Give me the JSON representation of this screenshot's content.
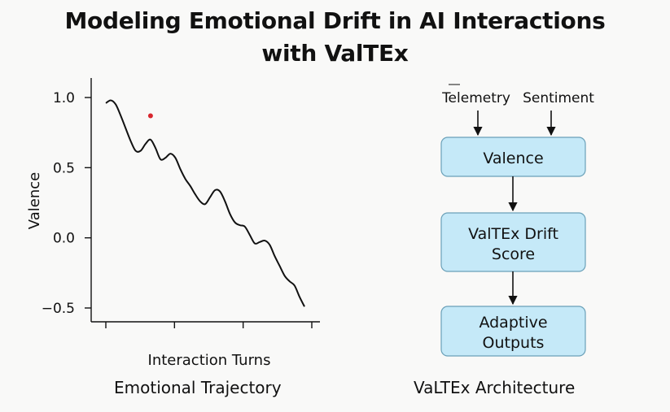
{
  "title": {
    "line1": "Modeling Emotional Drift in AI Interactions",
    "line2": "with ValTEx"
  },
  "left_panel": {
    "caption": "Emotional Trajectory"
  },
  "right_panel": {
    "caption": "VaLTEx Architecture"
  },
  "chart_data": {
    "type": "line",
    "title": "",
    "xlabel": "Interaction Turns",
    "ylabel": "Valence",
    "ylim": [
      -0.5,
      1.0
    ],
    "yticks": [
      "1.0",
      "0.5",
      "0.0",
      "−0.5"
    ],
    "ytick_values": [
      1.0,
      0.5,
      0.0,
      -0.5
    ],
    "xticks_count": 4,
    "series": [
      {
        "line_color": "#111111",
        "x": [
          0,
          0.5,
          1,
          1.5,
          2,
          2.5,
          3,
          3.5,
          4,
          4.5,
          5,
          5.5,
          6,
          6.5,
          7,
          7.5,
          8,
          8.5,
          9,
          9.5,
          10,
          10.5,
          11,
          11.5,
          12,
          12.5,
          13,
          13.5,
          14,
          14.5,
          15,
          15.5,
          16,
          16.5,
          17,
          17.5,
          18,
          18.5,
          19,
          19.5,
          20
        ],
        "values": [
          0.96,
          0.98,
          0.95,
          0.87,
          0.78,
          0.69,
          0.62,
          0.62,
          0.67,
          0.7,
          0.64,
          0.56,
          0.57,
          0.6,
          0.57,
          0.49,
          0.42,
          0.37,
          0.31,
          0.26,
          0.24,
          0.29,
          0.34,
          0.33,
          0.26,
          0.17,
          0.11,
          0.09,
          0.08,
          0.02,
          -0.04,
          -0.03,
          -0.02,
          -0.05,
          -0.13,
          -0.2,
          -0.27,
          -0.31,
          -0.34,
          -0.42,
          -0.49
        ]
      }
    ],
    "marker": {
      "x": 4.5,
      "y": 0.87,
      "color": "#d8262e"
    }
  },
  "diagram": {
    "inputs": [
      "Telemetry",
      "Sentiment"
    ],
    "nodes": [
      {
        "id": "valence",
        "lines": [
          "Valence"
        ]
      },
      {
        "id": "drift",
        "lines": [
          "ValTEx Drift",
          "Score"
        ]
      },
      {
        "id": "outputs",
        "lines": [
          "Adaptive",
          "Outputs"
        ]
      }
    ],
    "box_fill": "#c5e9f8",
    "box_stroke": "#6aa0b8"
  }
}
